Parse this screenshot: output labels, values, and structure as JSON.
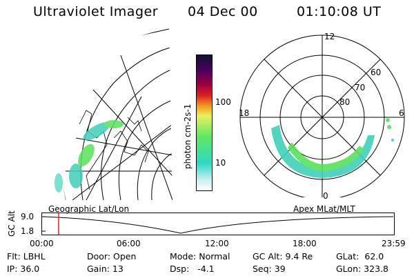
{
  "header": {
    "instrument": "Ultraviolet Imager",
    "date": "04 Dec 00",
    "time": "01:10:08 UT"
  },
  "colorbar": {
    "unit_label": "photon cm-2s-1",
    "ticks": [
      "100",
      "10"
    ]
  },
  "polar_plot": {
    "mlt_labels": [
      "12",
      "18",
      "6",
      "0"
    ],
    "lat_labels": [
      "60",
      "70",
      "80"
    ]
  },
  "timeline": {
    "y_axis_label": "GC Alt",
    "y_ticks": [
      "9.0",
      "1.8"
    ],
    "left_caption": "Geographic Lat/Lon",
    "right_caption": "Apex MLat/MLT",
    "x_ticks": [
      "00:00",
      "06:00",
      "12:00",
      "18:00",
      "23:59"
    ]
  },
  "info": {
    "row1": {
      "flt": "Flt: LBHL",
      "door": "Door: Open",
      "mode": "Mode: Normal",
      "gcalt": "GC Alt: 9.4 Re",
      "glat": "GLat:  62.0"
    },
    "row2": {
      "ip": "IP: 36.0",
      "gain": "Gain: 13",
      "dsp": "Dsp:   -4.1",
      "seq": "Seq: 39",
      "glon": "GLon: 323.8"
    }
  },
  "colors": {
    "aurora_low": "#40d0b8",
    "aurora_mid": "#5ae05a",
    "marker": "#e02020"
  }
}
